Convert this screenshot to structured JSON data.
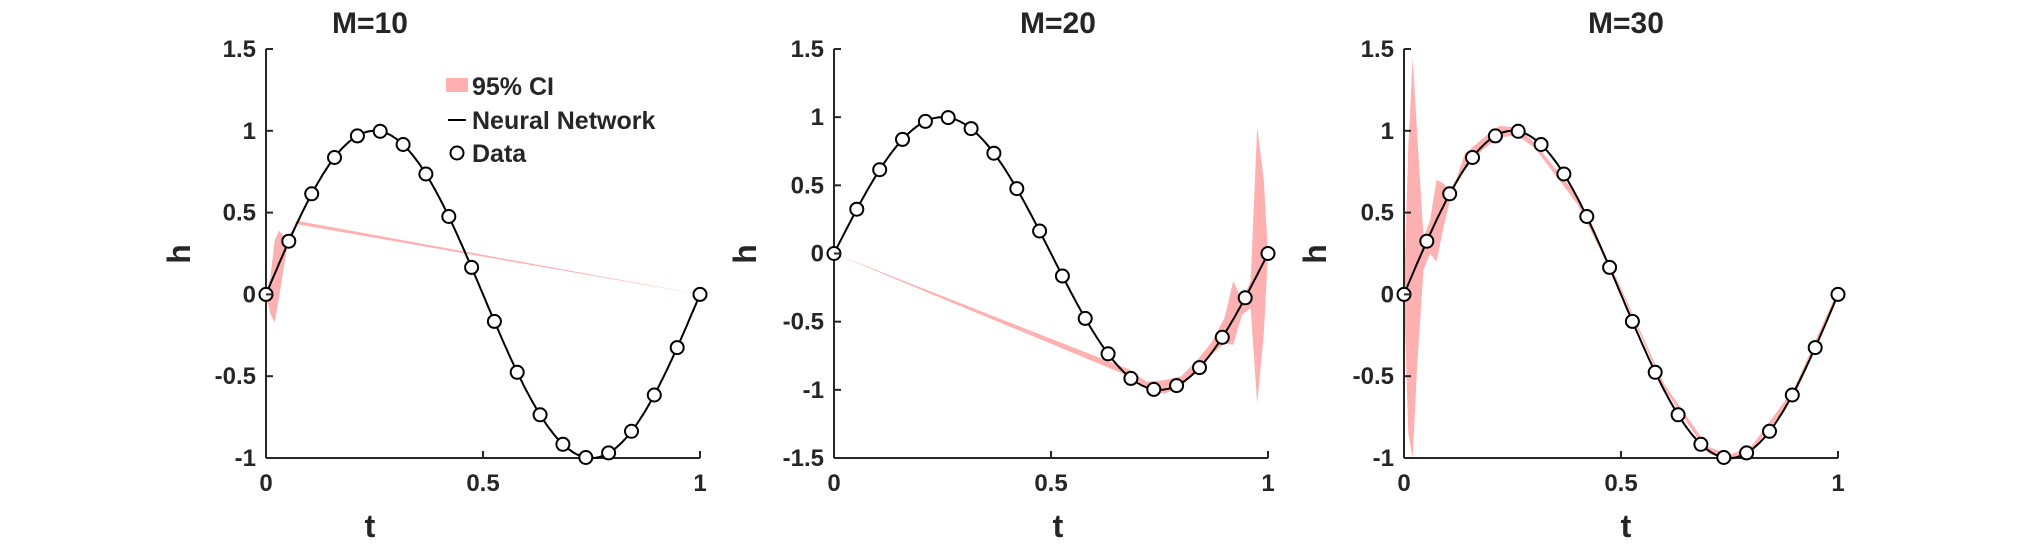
{
  "colors": {
    "ci_fill": "#ffb0b0",
    "line": "#000000",
    "axis": "#262626",
    "marker_fill": "#ffffff"
  },
  "legend": {
    "placement": "top-center of first panel",
    "entries": [
      {
        "key": "ci",
        "label": "95% CI"
      },
      {
        "key": "nn",
        "label": "Neural Network"
      },
      {
        "key": "data",
        "label": "Data"
      }
    ]
  },
  "chart_data": [
    {
      "type": "line",
      "title": "M=10",
      "xlabel": "t",
      "ylabel": "h",
      "xlim": [
        0,
        1
      ],
      "ylim": [
        -1,
        1.5
      ],
      "xticks": [
        "0",
        "0.5",
        "1"
      ],
      "yticks": [
        "-1",
        "-0.5",
        "0",
        "0.5",
        "1",
        "1.5"
      ],
      "grid": false,
      "series": [
        {
          "name": "Data",
          "style": "markers",
          "x": [
            0,
            0.0526,
            0.1053,
            0.1579,
            0.2105,
            0.2632,
            0.3158,
            0.3684,
            0.4211,
            0.4737,
            0.5263,
            0.5789,
            0.6316,
            0.6842,
            0.7368,
            0.7895,
            0.8421,
            0.8947,
            0.9474,
            1.0
          ],
          "y": [
            0,
            0.325,
            0.615,
            0.837,
            0.969,
            0.997,
            0.916,
            0.736,
            0.476,
            0.165,
            -0.165,
            -0.476,
            -0.736,
            -0.916,
            -0.997,
            -0.969,
            -0.837,
            -0.615,
            -0.325,
            0
          ]
        },
        {
          "name": "Neural Network",
          "style": "line",
          "function": "sin(2*pi*t)"
        },
        {
          "name": "95% CI",
          "style": "band",
          "t": [
            0,
            0.01,
            0.02,
            0.03,
            0.04,
            0.05,
            0.06,
            0.07,
            1.0
          ],
          "lower": [
            0,
            -0.12,
            -0.17,
            -0.02,
            0.15,
            0.31,
            0.37,
            0.43,
            0
          ],
          "upper": [
            0,
            0.1,
            0.33,
            0.39,
            0.36,
            0.35,
            0.39,
            0.45,
            0
          ]
        }
      ]
    },
    {
      "type": "line",
      "title": "M=20",
      "xlabel": "t",
      "ylabel": "h",
      "xlim": [
        0,
        1
      ],
      "ylim": [
        -1.5,
        1.5
      ],
      "xticks": [
        "0",
        "0.5",
        "1"
      ],
      "yticks": [
        "-1.5",
        "-1",
        "-0.5",
        "0",
        "0.5",
        "1",
        "1.5"
      ],
      "grid": false,
      "series": [
        {
          "name": "Data",
          "style": "markers",
          "x": [
            0,
            0.0526,
            0.1053,
            0.1579,
            0.2105,
            0.2632,
            0.3158,
            0.3684,
            0.4211,
            0.4737,
            0.5263,
            0.5789,
            0.6316,
            0.6842,
            0.7368,
            0.7895,
            0.8421,
            0.8947,
            0.9474,
            1.0
          ],
          "y": [
            0,
            0.325,
            0.615,
            0.837,
            0.969,
            0.997,
            0.916,
            0.736,
            0.476,
            0.165,
            -0.165,
            -0.476,
            -0.736,
            -0.916,
            -0.997,
            -0.969,
            -0.837,
            -0.615,
            -0.325,
            0
          ]
        },
        {
          "name": "Neural Network",
          "style": "line",
          "function": "sin(2*pi*t)"
        },
        {
          "name": "95% CI",
          "style": "band",
          "t": [
            0,
            0.68,
            0.72,
            0.76,
            0.8,
            0.84,
            0.87,
            0.9,
            0.92,
            0.94,
            0.96,
            0.975,
            0.99,
            1.0
          ],
          "lower": [
            0,
            -0.9,
            -0.98,
            -1.03,
            -0.98,
            -0.83,
            -0.74,
            -0.66,
            -0.67,
            -0.45,
            -0.4,
            -1.1,
            -0.6,
            0
          ],
          "upper": [
            0,
            -0.85,
            -0.94,
            -0.93,
            -0.9,
            -0.77,
            -0.65,
            -0.47,
            -0.2,
            -0.35,
            -0.2,
            0.93,
            0.55,
            0
          ]
        }
      ]
    },
    {
      "type": "line",
      "title": "M=30",
      "xlabel": "t",
      "ylabel": "h",
      "xlim": [
        0,
        1
      ],
      "ylim": [
        -1,
        1.5
      ],
      "xticks": [
        "0",
        "0.5",
        "1"
      ],
      "yticks": [
        "-1",
        "-0.5",
        "0",
        "0.5",
        "1",
        "1.5"
      ],
      "grid": false,
      "series": [
        {
          "name": "Data",
          "style": "markers",
          "x": [
            0,
            0.0526,
            0.1053,
            0.1579,
            0.2105,
            0.2632,
            0.3158,
            0.3684,
            0.4211,
            0.4737,
            0.5263,
            0.5789,
            0.6316,
            0.6842,
            0.7368,
            0.7895,
            0.8421,
            0.8947,
            0.9474,
            1.0
          ],
          "y": [
            0,
            0.325,
            0.615,
            0.837,
            0.969,
            0.997,
            0.916,
            0.736,
            0.476,
            0.165,
            -0.165,
            -0.476,
            -0.736,
            -0.916,
            -0.997,
            -0.969,
            -0.837,
            -0.615,
            -0.325,
            0
          ]
        },
        {
          "name": "Neural Network",
          "style": "line",
          "function": "sin(2*pi*t)"
        },
        {
          "name": "95% CI",
          "style": "band",
          "t": [
            0,
            0.01,
            0.02,
            0.03,
            0.045,
            0.06,
            0.075,
            0.09,
            0.11,
            0.14,
            0.18,
            0.22,
            0.26,
            0.3,
            0.4,
            0.5,
            0.6,
            0.7,
            0.75,
            0.8,
            0.9,
            0.95,
            1.0
          ],
          "lower": [
            0,
            -0.85,
            -1.0,
            -0.45,
            0.15,
            0.25,
            0.2,
            0.4,
            0.62,
            0.76,
            0.88,
            0.96,
            0.97,
            0.9,
            0.55,
            0.02,
            -0.58,
            -0.97,
            -1.02,
            -0.96,
            -0.62,
            -0.32,
            0
          ],
          "upper": [
            0,
            0.9,
            1.45,
            1.0,
            0.35,
            0.45,
            0.7,
            0.68,
            0.62,
            0.86,
            0.95,
            1.03,
            1.02,
            0.93,
            0.6,
            0.04,
            -0.55,
            -0.93,
            -0.98,
            -0.93,
            -0.57,
            -0.27,
            0.03
          ]
        }
      ]
    }
  ]
}
